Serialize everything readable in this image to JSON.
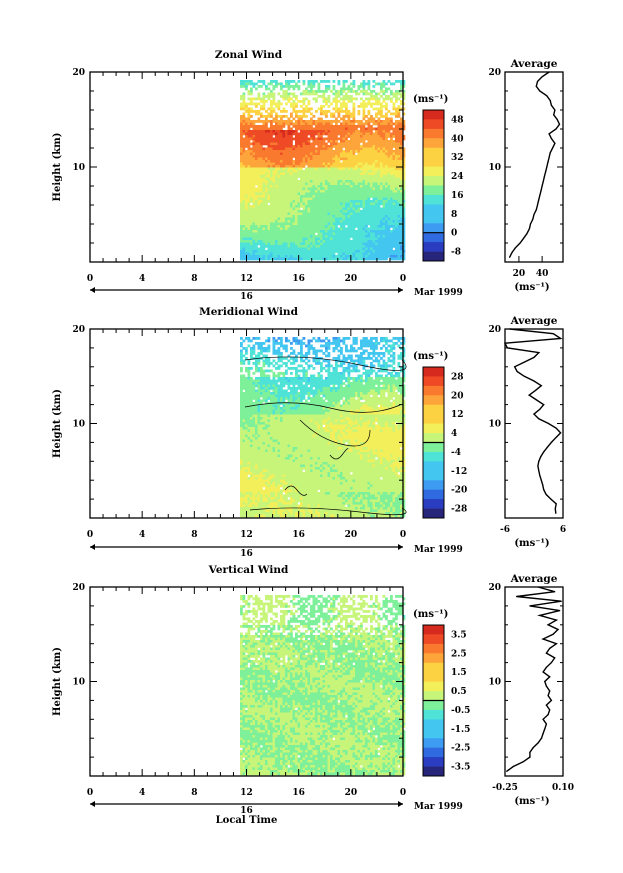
{
  "chart_data": [
    {
      "type": "heatmap",
      "title": "Zonal Wind",
      "ylabel": "Height (km)",
      "ylim": [
        0,
        20
      ],
      "y_ticks": [
        "10",
        "20"
      ],
      "x_ticks": [
        "0",
        "4",
        "8",
        "12",
        "16",
        "20",
        "0"
      ],
      "date_day": "16",
      "date_month": "Mar 1999",
      "data_start_hour": 11.5,
      "colorbar": {
        "unit": "(ms⁻¹)",
        "ticks": [
          "48",
          "40",
          "32",
          "24",
          "16",
          "8",
          "0",
          "-8"
        ],
        "min": -12,
        "max": 52
      },
      "profile": {
        "title": "Average",
        "xlabel": "(ms⁻¹)",
        "xlim": [
          8,
          58
        ],
        "x_ticks": [
          "20",
          "40"
        ],
        "y_ticks": [
          "10",
          "20"
        ],
        "heights_km": [
          0.5,
          1,
          1.5,
          2,
          2.5,
          3,
          3.5,
          4,
          4.5,
          5,
          5.5,
          6,
          6.5,
          7,
          7.5,
          8,
          8.5,
          9,
          9.5,
          10,
          10.5,
          11,
          11.5,
          12,
          12.5,
          13,
          13.5,
          14,
          14.5,
          15,
          15.5,
          16,
          16.5,
          17,
          17.5,
          18,
          18.5,
          19,
          19.5,
          20
        ],
        "values": [
          12,
          14,
          17,
          21,
          24,
          27,
          29,
          30,
          32,
          33,
          35,
          36,
          37,
          38,
          39,
          40,
          41,
          42,
          43,
          44,
          45,
          46,
          47,
          49,
          51,
          48,
          46,
          52,
          55,
          53,
          50,
          51,
          48,
          47,
          44,
          38,
          35,
          36,
          40,
          46
        ]
      }
    },
    {
      "type": "heatmap",
      "title": "Meridional Wind",
      "ylabel": "Height (km)",
      "ylim": [
        0,
        20
      ],
      "y_ticks": [
        "10",
        "20"
      ],
      "x_ticks": [
        "0",
        "4",
        "8",
        "12",
        "16",
        "20",
        "0"
      ],
      "date_day": "16",
      "date_month": "Mar 1999",
      "data_start_hour": 11.5,
      "colorbar": {
        "unit": "(ms⁻¹)",
        "ticks": [
          "28",
          "20",
          "12",
          "4",
          "-4",
          "-12",
          "-20",
          "-28"
        ],
        "min": -32,
        "max": 32
      },
      "profile": {
        "title": "Average",
        "xlabel": "(ms⁻¹)",
        "xlim": [
          -6,
          6
        ],
        "x_ticks": [
          "-6",
          "6"
        ],
        "y_ticks": [
          "10",
          "20"
        ],
        "heights_km": [
          0.5,
          1,
          1.5,
          2,
          2.5,
          3,
          3.5,
          4,
          4.5,
          5,
          5.5,
          6,
          6.5,
          7,
          7.5,
          8,
          8.5,
          9,
          9.5,
          10,
          10.5,
          11,
          11.5,
          12,
          12.5,
          13,
          13.5,
          14,
          14.5,
          15,
          15.5,
          16,
          16.5,
          17,
          17.5,
          18,
          18.5,
          19,
          19.5,
          20
        ],
        "values": [
          4.5,
          4.4,
          4.6,
          3.5,
          2.5,
          2.0,
          1.8,
          1.5,
          1.2,
          1.0,
          0.8,
          1.0,
          1.4,
          2.0,
          2.8,
          3.6,
          4.5,
          5.5,
          4.6,
          3.0,
          1.0,
          0.0,
          1.2,
          2.0,
          0.5,
          -1.0,
          0.3,
          1.5,
          0.0,
          -2.0,
          -3.5,
          -4.0,
          -2.0,
          0.0,
          1.0,
          -5.5,
          -6.0,
          5.5,
          4.0,
          -5.0
        ]
      }
    },
    {
      "type": "heatmap",
      "title": "Vertical Wind",
      "ylabel": "Height (km)",
      "xlabel": "Local Time",
      "ylim": [
        0,
        20
      ],
      "y_ticks": [
        "10",
        "20"
      ],
      "x_ticks": [
        "0",
        "4",
        "8",
        "12",
        "16",
        "20",
        "0"
      ],
      "date_day": "16",
      "date_month": "Mar 1999",
      "data_start_hour": 11.5,
      "colorbar": {
        "unit": "(ms⁻¹)",
        "ticks": [
          "3.5",
          "2.5",
          "1.5",
          "0.5",
          "-0.5",
          "-1.5",
          "-2.5",
          "-3.5"
        ],
        "min": -4,
        "max": 4
      },
      "profile": {
        "title": "Average",
        "xlabel": "(ms⁻¹)",
        "xlim": [
          -0.25,
          0.1
        ],
        "x_ticks": [
          "-0.25",
          "0.10"
        ],
        "y_ticks": [
          "10",
          "20"
        ],
        "heights_km": [
          0.5,
          1,
          1.5,
          2,
          2.5,
          3,
          3.5,
          4,
          4.5,
          5,
          5.5,
          6,
          6.5,
          7,
          7.5,
          8,
          8.5,
          9,
          9.5,
          10,
          10.5,
          11,
          11.5,
          12,
          12.5,
          13,
          13.5,
          14,
          14.5,
          15,
          15.5,
          16,
          16.5,
          17,
          17.5,
          18,
          18.5,
          19,
          19.5,
          20
        ],
        "values": [
          -0.24,
          -0.2,
          -0.14,
          -0.1,
          -0.1,
          -0.08,
          -0.05,
          -0.03,
          -0.02,
          -0.01,
          0.0,
          -0.02,
          0.01,
          0.02,
          0.0,
          0.03,
          0.01,
          0.02,
          0.0,
          -0.01,
          0.02,
          -0.02,
          0.0,
          0.03,
          0.05,
          0.0,
          0.02,
          0.06,
          -0.02,
          0.04,
          0.07,
          0.01,
          0.06,
          -0.04,
          0.08,
          -0.1,
          0.09,
          -0.18,
          0.05,
          -0.05
        ]
      }
    }
  ]
}
